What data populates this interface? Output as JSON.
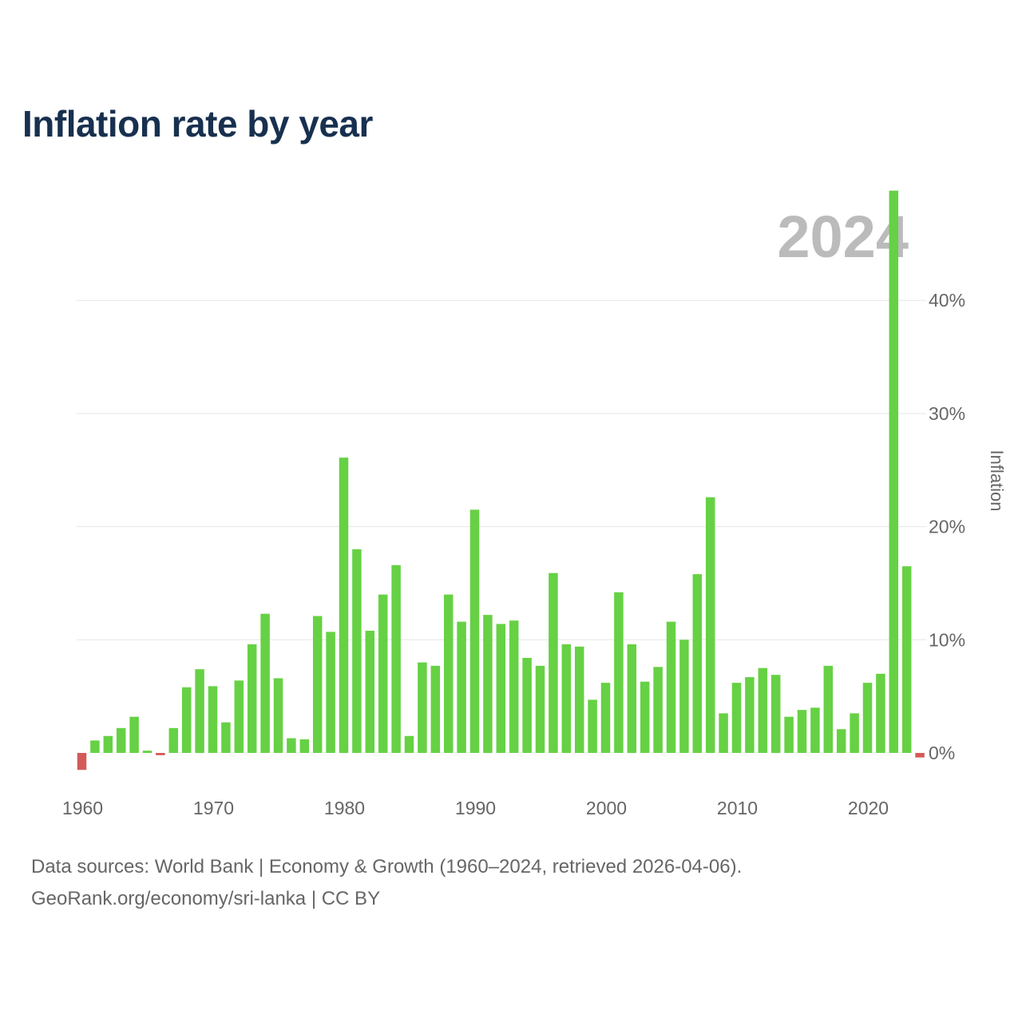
{
  "title": "Inflation rate by year",
  "chart_data": {
    "type": "bar",
    "year_label": "2024",
    "ylabel": "Inflation",
    "ylim": [
      -2,
      50
    ],
    "yticks": [
      0,
      10,
      20,
      30,
      40
    ],
    "ytick_labels": [
      "0%",
      "10%",
      "20%",
      "30%",
      "40%"
    ],
    "xticks": [
      1960,
      1970,
      1980,
      1990,
      2000,
      2010,
      2020
    ],
    "xtick_labels": [
      "1960",
      "1970",
      "1980",
      "1990",
      "2000",
      "2010",
      "2020"
    ],
    "grid": true,
    "colors": {
      "positive": "#66d144",
      "negative": "#d45a5a",
      "grid": "#e6e6e6",
      "axis_text": "#666666",
      "year_label": "#bbbbbb"
    },
    "years": [
      1960,
      1961,
      1962,
      1963,
      1964,
      1965,
      1966,
      1967,
      1968,
      1969,
      1970,
      1971,
      1972,
      1973,
      1974,
      1975,
      1976,
      1977,
      1978,
      1979,
      1980,
      1981,
      1982,
      1983,
      1984,
      1985,
      1986,
      1987,
      1988,
      1989,
      1990,
      1991,
      1992,
      1993,
      1994,
      1995,
      1996,
      1997,
      1998,
      1999,
      2000,
      2001,
      2002,
      2003,
      2004,
      2005,
      2006,
      2007,
      2008,
      2009,
      2010,
      2011,
      2012,
      2013,
      2014,
      2015,
      2016,
      2017,
      2018,
      2019,
      2020,
      2021,
      2022,
      2023,
      2024
    ],
    "values": [
      -1.5,
      1.1,
      1.5,
      2.2,
      3.2,
      0.2,
      -0.2,
      2.2,
      5.8,
      7.4,
      5.9,
      2.7,
      6.4,
      9.6,
      12.3,
      6.6,
      1.3,
      1.2,
      12.1,
      10.7,
      26.1,
      18.0,
      10.8,
      14.0,
      16.6,
      1.5,
      8.0,
      7.7,
      14.0,
      11.6,
      21.5,
      12.2,
      11.4,
      11.7,
      8.4,
      7.7,
      15.9,
      9.6,
      9.4,
      4.7,
      6.2,
      14.2,
      9.6,
      6.3,
      7.6,
      11.6,
      10.0,
      15.8,
      22.6,
      3.5,
      6.2,
      6.7,
      7.5,
      6.9,
      3.2,
      3.8,
      4.0,
      7.7,
      2.1,
      3.5,
      6.2,
      7.0,
      49.7,
      16.5,
      -0.4
    ]
  },
  "footer": {
    "line1": "Data sources: World Bank | Economy & Growth (1960–2024, retrieved 2026-04-06).",
    "line2": "GeoRank.org/economy/sri-lanka | CC BY"
  }
}
